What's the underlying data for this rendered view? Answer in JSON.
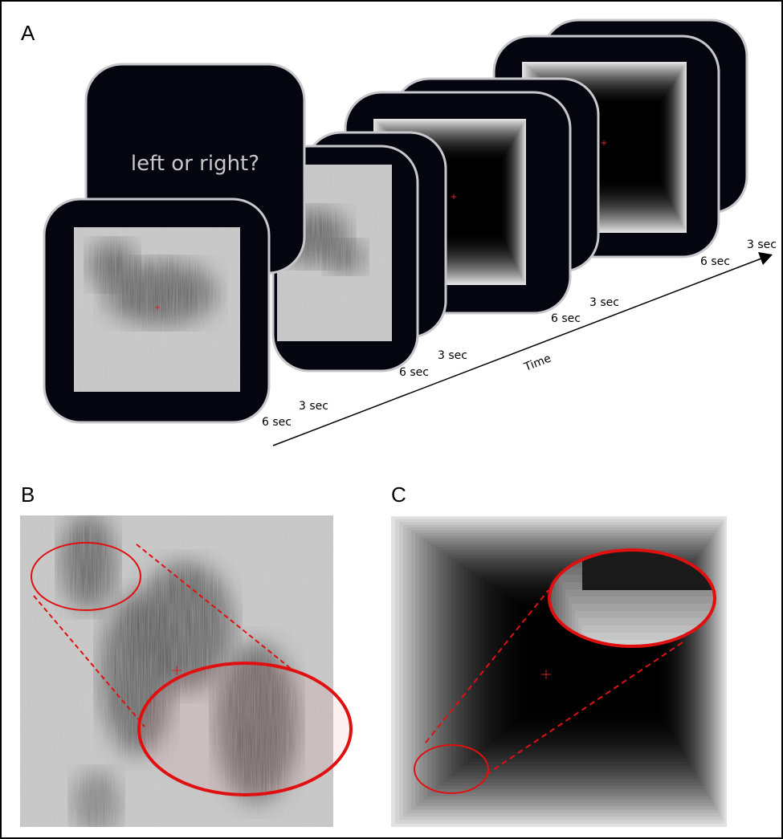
{
  "panels": {
    "a": {
      "label": "A",
      "prompt": "left or right?",
      "axis_label": "Time",
      "durations": [
        {
          "stimulus": "6 sec",
          "pause": "3 sec"
        },
        {
          "stimulus": "6 sec",
          "pause": "3 sec"
        },
        {
          "stimulus": "6 sec",
          "pause": "3 sec"
        },
        {
          "stimulus": "6 sec",
          "pause": "3 sec"
        }
      ]
    },
    "b": {
      "label": "B"
    },
    "c": {
      "label": "C"
    }
  }
}
